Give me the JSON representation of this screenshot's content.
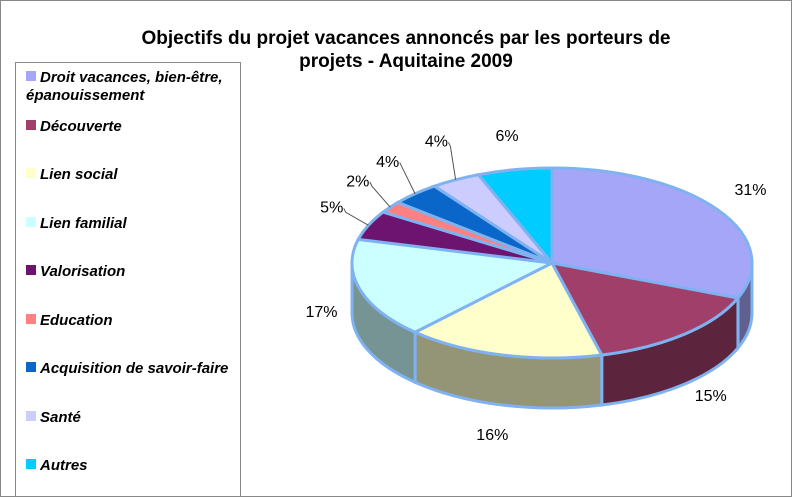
{
  "chart_data": {
    "type": "pie3d",
    "title": "Objectifs du projet vacances annoncés par les porteurs de projets - Aquitaine 2009",
    "categories": [
      "Droit vacances, bien-être, épanouissement",
      "Découverte",
      "Lien social",
      "Lien familial",
      "Valorisation",
      "Education",
      "Acquisition de savoir-faire",
      "Santé",
      "Autres"
    ],
    "values": [
      31,
      15,
      16,
      17,
      5,
      2,
      4,
      4,
      6
    ],
    "value_labels": [
      "31%",
      "15%",
      "16%",
      "17%",
      "5%",
      "2%",
      "4%",
      "4%",
      "6%"
    ],
    "colors": [
      "#a6a6f8",
      "#a0406a",
      "#ffffcc",
      "#ccffff",
      "#6c1470",
      "#ff8080",
      "#0a66c8",
      "#ccccff",
      "#00ccff"
    ],
    "legend": "left"
  }
}
